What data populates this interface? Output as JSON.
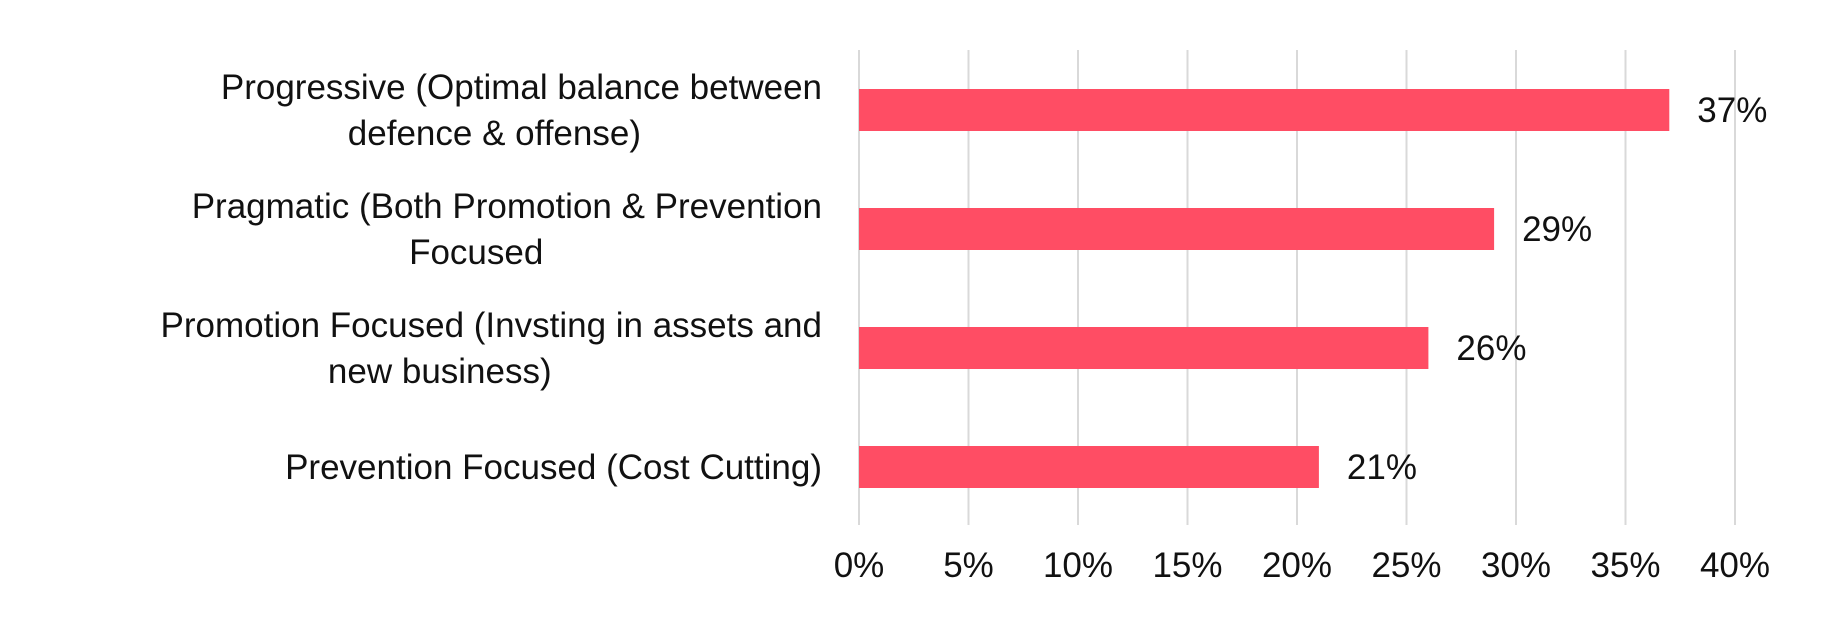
{
  "chart_data": {
    "type": "bar",
    "orientation": "horizontal",
    "categories": [
      [
        "Progressive (Optimal balance between",
        "defence & offense)"
      ],
      [
        "Pragmatic (Both Promotion & Prevention",
        "Focused"
      ],
      [
        "Promotion  Focused (Invsting in assets and",
        "new business)"
      ],
      [
        "Prevention Focused (Cost Cutting)"
      ]
    ],
    "values": [
      37,
      29,
      26,
      21
    ],
    "data_labels": [
      "37%",
      "29%",
      "26%",
      "21%"
    ],
    "xlim": [
      0,
      40
    ],
    "x_ticks": [
      0,
      5,
      10,
      15,
      20,
      25,
      30,
      35,
      40
    ],
    "x_tick_labels": [
      "0%",
      "5%",
      "10%",
      "15%",
      "20%",
      "25%",
      "30%",
      "35%",
      "40%"
    ],
    "title": "",
    "xlabel": "",
    "ylabel": "",
    "grid": "vertical",
    "legend": "none",
    "bar_color": "#ff4d64",
    "grid_color": "#d9d9d9"
  }
}
